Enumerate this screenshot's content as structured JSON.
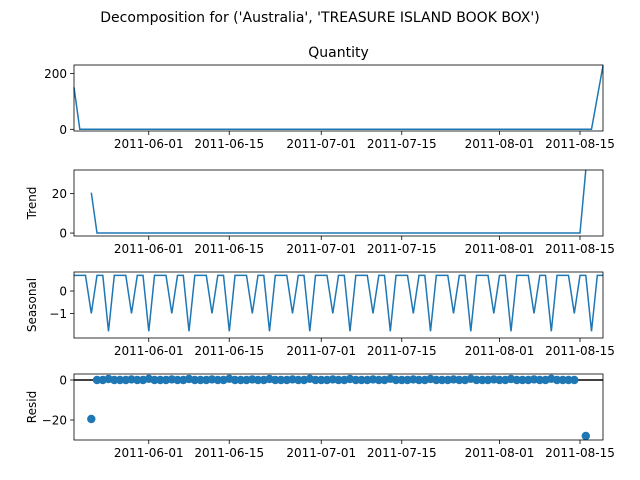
{
  "figure_title": "Decomposition for ('Australia', 'TREASURE ISLAND BOOK BOX')",
  "colors": {
    "line": "#1f77b4",
    "axis": "#000000",
    "zero_line": "#000000",
    "background": "#ffffff"
  },
  "chart_data": [
    {
      "type": "line",
      "title": "Quantity",
      "xlabel": "",
      "ylabel": "",
      "x_range": [
        "2011-05-19",
        "2011-08-19"
      ],
      "ylim": [
        -6,
        230
      ],
      "xticks": [
        "2011-06-01",
        "2011-06-15",
        "2011-07-01",
        "2011-07-15",
        "2011-08-01",
        "2011-08-15"
      ],
      "yticks": [
        0,
        200
      ],
      "series": [
        {
          "points": [
            [
              "2011-05-19",
              150
            ],
            [
              "2011-05-20",
              0
            ],
            [
              "2011-08-17",
              0
            ],
            [
              "2011-08-19",
              228
            ]
          ]
        }
      ]
    },
    {
      "type": "line",
      "title": "",
      "xlabel": "",
      "ylabel": "Trend",
      "x_range": [
        "2011-05-19",
        "2011-08-19"
      ],
      "ylim": [
        -1.5,
        32
      ],
      "xticks": [
        "2011-06-01",
        "2011-06-15",
        "2011-07-01",
        "2011-07-15",
        "2011-08-01",
        "2011-08-15"
      ],
      "yticks": [
        0,
        20
      ],
      "series": [
        {
          "points": [
            [
              "2011-05-22",
              20.5
            ],
            [
              "2011-05-23",
              0
            ],
            [
              "2011-08-15",
              0
            ],
            [
              "2011-08-16",
              32
            ]
          ]
        }
      ]
    },
    {
      "type": "line",
      "title": "",
      "xlabel": "",
      "ylabel": "Seasonal",
      "x_range": [
        "2011-05-19",
        "2011-08-19"
      ],
      "ylim": [
        -2.1,
        0.85
      ],
      "xticks": [
        "2011-06-01",
        "2011-06-15",
        "2011-07-01",
        "2011-07-15",
        "2011-08-01",
        "2011-08-15"
      ],
      "yticks": [
        0,
        -1
      ],
      "pattern_start": "2011-05-19",
      "pattern_end": "2011-08-19",
      "pattern_period_values": [
        0.7,
        0.7,
        0.7,
        -1.0,
        0.7,
        0.7,
        -1.8
      ],
      "series": [
        {
          "values_rule": "weekly seasonal pattern"
        }
      ]
    },
    {
      "type": "scatter",
      "title": "",
      "xlabel": "",
      "ylabel": "Resid",
      "x_range": [
        "2011-05-19",
        "2011-08-19"
      ],
      "ylim": [
        -30,
        3
      ],
      "xticks": [
        "2011-06-01",
        "2011-06-15",
        "2011-07-01",
        "2011-07-15",
        "2011-08-01",
        "2011-08-15"
      ],
      "yticks": [
        0,
        -20
      ],
      "zero_line": true,
      "series": [
        {
          "points": [
            [
              "2011-05-22",
              -19.5
            ],
            [
              "2011-05-23",
              0
            ],
            [
              "2011-05-24",
              0
            ],
            [
              "2011-05-25",
              0.5
            ],
            [
              "2011-05-26",
              0
            ],
            [
              "2011-05-27",
              0
            ],
            [
              "2011-05-28",
              0
            ],
            [
              "2011-05-29",
              0.3
            ],
            [
              "2011-05-30",
              0
            ],
            [
              "2011-05-31",
              0
            ],
            [
              "2011-06-01",
              0.6
            ],
            [
              "2011-06-02",
              0
            ],
            [
              "2011-06-03",
              0
            ],
            [
              "2011-06-04",
              0
            ],
            [
              "2011-06-05",
              0.3
            ],
            [
              "2011-06-06",
              0
            ],
            [
              "2011-06-07",
              0
            ],
            [
              "2011-06-08",
              0.5
            ],
            [
              "2011-06-09",
              0
            ],
            [
              "2011-06-10",
              0
            ],
            [
              "2011-06-11",
              0
            ],
            [
              "2011-06-12",
              0.3
            ],
            [
              "2011-06-13",
              0
            ],
            [
              "2011-06-14",
              0
            ],
            [
              "2011-06-15",
              0.6
            ],
            [
              "2011-06-16",
              0
            ],
            [
              "2011-06-17",
              0
            ],
            [
              "2011-06-18",
              0
            ],
            [
              "2011-06-19",
              0.3
            ],
            [
              "2011-06-20",
              0
            ],
            [
              "2011-06-21",
              0
            ],
            [
              "2011-06-22",
              0.5
            ],
            [
              "2011-06-23",
              0
            ],
            [
              "2011-06-24",
              0
            ],
            [
              "2011-06-25",
              0
            ],
            [
              "2011-06-26",
              0.3
            ],
            [
              "2011-06-27",
              0
            ],
            [
              "2011-06-28",
              0
            ],
            [
              "2011-06-29",
              0.6
            ],
            [
              "2011-06-30",
              0
            ],
            [
              "2011-07-01",
              0
            ],
            [
              "2011-07-02",
              0
            ],
            [
              "2011-07-03",
              0.3
            ],
            [
              "2011-07-04",
              0
            ],
            [
              "2011-07-05",
              0
            ],
            [
              "2011-07-06",
              0.5
            ],
            [
              "2011-07-07",
              0
            ],
            [
              "2011-07-08",
              0
            ],
            [
              "2011-07-09",
              0
            ],
            [
              "2011-07-10",
              0.3
            ],
            [
              "2011-07-11",
              0
            ],
            [
              "2011-07-12",
              0
            ],
            [
              "2011-07-13",
              0.6
            ],
            [
              "2011-07-14",
              0
            ],
            [
              "2011-07-15",
              0
            ],
            [
              "2011-07-16",
              0
            ],
            [
              "2011-07-17",
              0.3
            ],
            [
              "2011-07-18",
              0
            ],
            [
              "2011-07-19",
              0
            ],
            [
              "2011-07-20",
              0.5
            ],
            [
              "2011-07-21",
              0
            ],
            [
              "2011-07-22",
              0
            ],
            [
              "2011-07-23",
              0
            ],
            [
              "2011-07-24",
              0.3
            ],
            [
              "2011-07-25",
              0
            ],
            [
              "2011-07-26",
              0
            ],
            [
              "2011-07-27",
              0.6
            ],
            [
              "2011-07-28",
              0
            ],
            [
              "2011-07-29",
              0
            ],
            [
              "2011-07-30",
              0
            ],
            [
              "2011-07-31",
              0.3
            ],
            [
              "2011-08-01",
              0
            ],
            [
              "2011-08-02",
              0
            ],
            [
              "2011-08-03",
              0.5
            ],
            [
              "2011-08-04",
              0
            ],
            [
              "2011-08-05",
              0
            ],
            [
              "2011-08-06",
              0
            ],
            [
              "2011-08-07",
              0.3
            ],
            [
              "2011-08-08",
              0
            ],
            [
              "2011-08-09",
              0
            ],
            [
              "2011-08-10",
              0.6
            ],
            [
              "2011-08-11",
              0
            ],
            [
              "2011-08-12",
              0
            ],
            [
              "2011-08-13",
              0
            ],
            [
              "2011-08-14",
              0
            ],
            [
              "2011-08-16",
              -28
            ]
          ]
        }
      ]
    }
  ]
}
